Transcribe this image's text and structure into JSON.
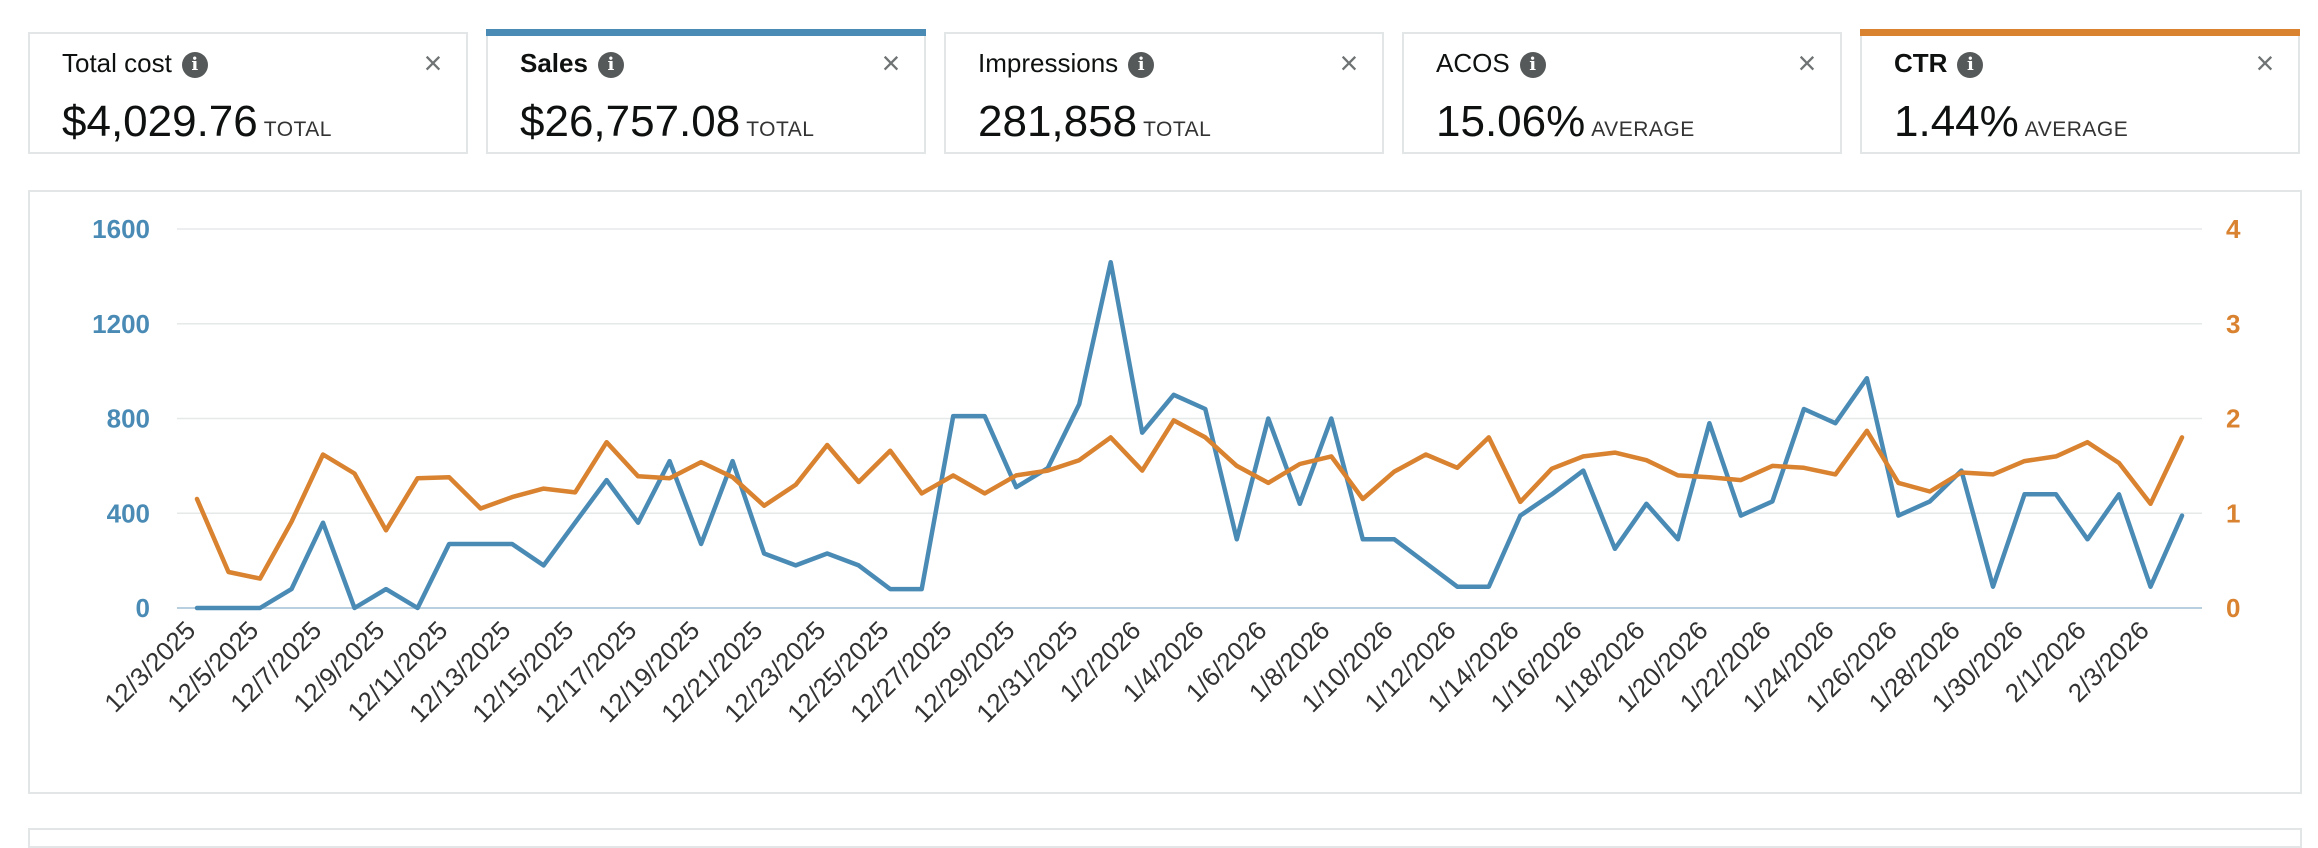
{
  "cards": [
    {
      "title": "Total cost",
      "value": "$4,029.76",
      "qualifier": "TOTAL",
      "selected": false
    },
    {
      "title": "Sales",
      "value": "$26,757.08",
      "qualifier": "TOTAL",
      "selected": true,
      "accent": "#4a8bb6"
    },
    {
      "title": "Impressions",
      "value": "281,858",
      "qualifier": "TOTAL",
      "selected": false
    },
    {
      "title": "ACOS",
      "value": "15.06%",
      "qualifier": "AVERAGE",
      "selected": false
    },
    {
      "title": "CTR",
      "value": "1.44%",
      "qualifier": "AVERAGE",
      "selected": true,
      "accent": "#d98230"
    }
  ],
  "icons": {
    "info": "i",
    "close": "×"
  },
  "chart_data": {
    "type": "line",
    "x": [
      "12/3/2025",
      "12/4/2025",
      "12/5/2025",
      "12/6/2025",
      "12/7/2025",
      "12/8/2025",
      "12/9/2025",
      "12/10/2025",
      "12/11/2025",
      "12/12/2025",
      "12/13/2025",
      "12/14/2025",
      "12/15/2025",
      "12/16/2025",
      "12/17/2025",
      "12/18/2025",
      "12/19/2025",
      "12/20/2025",
      "12/21/2025",
      "12/22/2025",
      "12/23/2025",
      "12/24/2025",
      "12/25/2025",
      "12/26/2025",
      "12/27/2025",
      "12/28/2025",
      "12/29/2025",
      "12/30/2025",
      "12/31/2025",
      "1/1/2026",
      "1/2/2026",
      "1/3/2026",
      "1/4/2026",
      "1/5/2026",
      "1/6/2026",
      "1/7/2026",
      "1/8/2026",
      "1/9/2026",
      "1/10/2026",
      "1/11/2026",
      "1/12/2026",
      "1/13/2026",
      "1/14/2026",
      "1/15/2026",
      "1/16/2026",
      "1/17/2026",
      "1/18/2026",
      "1/19/2026",
      "1/20/2026",
      "1/21/2026",
      "1/22/2026",
      "1/23/2026",
      "1/24/2026",
      "1/25/2026",
      "1/26/2026",
      "1/27/2026",
      "1/28/2026",
      "1/29/2026",
      "1/30/2026",
      "1/31/2026",
      "2/1/2026",
      "2/2/2026",
      "2/3/2026",
      "2/4/2026"
    ],
    "tick_labels": [
      "12/3/2025",
      "12/5/2025",
      "12/7/2025",
      "12/9/2025",
      "12/11/2025",
      "12/13/2025",
      "12/15/2025",
      "12/17/2025",
      "12/19/2025",
      "12/21/2025",
      "12/23/2025",
      "12/25/2025",
      "12/27/2025",
      "12/29/2025",
      "12/31/2025",
      "1/2/2026",
      "1/4/2026",
      "1/6/2026",
      "1/8/2026",
      "1/10/2026",
      "1/12/2026",
      "1/14/2026",
      "1/16/2026",
      "1/18/2026",
      "1/20/2026",
      "1/22/2026",
      "1/24/2026",
      "1/26/2026",
      "1/28/2026",
      "1/30/2026",
      "2/1/2026",
      "2/3/2026"
    ],
    "y_left": {
      "min": 0,
      "max": 1600,
      "ticks": [
        "0",
        "400",
        "800",
        "1200",
        "1600"
      ],
      "color": "#4a8bb6"
    },
    "y_right": {
      "min": 0,
      "max": 4,
      "ticks": [
        "0",
        "1",
        "2",
        "3",
        "4"
      ],
      "color": "#d98230"
    },
    "grid": true,
    "series": [
      {
        "name": "Sales",
        "axis": "left",
        "color": "#4a8bb6",
        "values": [
          0,
          0,
          0,
          80,
          360,
          0,
          80,
          0,
          270,
          270,
          270,
          180,
          360,
          540,
          360,
          620,
          270,
          620,
          230,
          180,
          230,
          180,
          80,
          80,
          810,
          810,
          510,
          590,
          860,
          1460,
          740,
          900,
          840,
          290,
          800,
          440,
          800,
          290,
          290,
          190,
          90,
          90,
          390,
          480,
          580,
          250,
          440,
          290,
          780,
          390,
          450,
          840,
          780,
          970,
          390,
          450,
          580,
          90,
          480,
          480,
          290,
          480,
          90,
          390
        ]
      },
      {
        "name": "CTR",
        "axis": "right",
        "color": "#d98230",
        "values": [
          1.15,
          0.38,
          0.31,
          0.91,
          1.62,
          1.42,
          0.82,
          1.37,
          1.38,
          1.05,
          1.17,
          1.26,
          1.22,
          1.75,
          1.39,
          1.37,
          1.54,
          1.38,
          1.08,
          1.3,
          1.72,
          1.33,
          1.66,
          1.21,
          1.4,
          1.21,
          1.4,
          1.45,
          1.56,
          1.8,
          1.45,
          1.98,
          1.8,
          1.5,
          1.32,
          1.52,
          1.6,
          1.15,
          1.44,
          1.62,
          1.48,
          1.8,
          1.12,
          1.47,
          1.6,
          1.64,
          1.56,
          1.4,
          1.38,
          1.35,
          1.5,
          1.48,
          1.41,
          1.87,
          1.32,
          1.23,
          1.43,
          1.41,
          1.55,
          1.6,
          1.75,
          1.53,
          1.1,
          1.8
        ]
      }
    ]
  }
}
